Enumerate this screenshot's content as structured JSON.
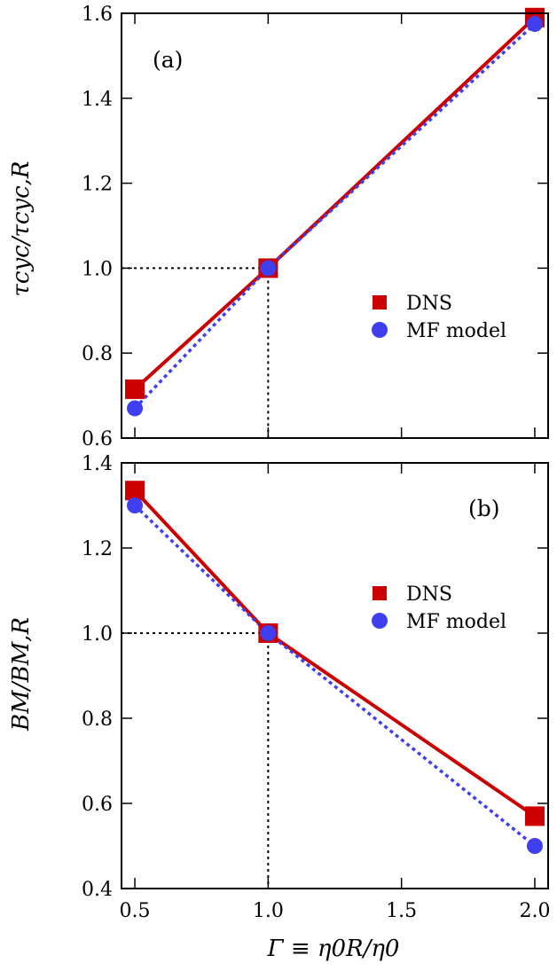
{
  "chart_data": [
    {
      "type": "line",
      "panel_label": "(a)",
      "ylabel": "τcyc/τcyc,R",
      "xlabel": "Γ ≡ η0R/η0",
      "x": [
        0.5,
        1.0,
        2.0
      ],
      "xlim": [
        0.45,
        2.05
      ],
      "ylim": [
        0.6,
        1.6
      ],
      "xticks": [
        0.5,
        1.0,
        1.5,
        2.0
      ],
      "yticks": [
        0.6,
        0.8,
        1.0,
        1.2,
        1.4,
        1.6
      ],
      "ytick_labels": [
        "0.6",
        "0.8",
        "1.0",
        "1.2",
        "1.4",
        "1.6"
      ],
      "reference_point": {
        "x": 1.0,
        "y": 1.0
      },
      "legend_placement": "right-middle",
      "series": [
        {
          "name": "DNS",
          "values": [
            0.715,
            1.0,
            1.59
          ],
          "marker": "square",
          "line": "solid",
          "color": "#cc0000"
        },
        {
          "name": "MF model",
          "values": [
            0.67,
            1.0,
            1.575
          ],
          "marker": "circle",
          "line": "dotted",
          "color": "#3f3ff0"
        }
      ]
    },
    {
      "type": "line",
      "panel_label": "(b)",
      "ylabel": "BM/BM,R",
      "xlabel": "Γ ≡ η0R/η0",
      "x": [
        0.5,
        1.0,
        2.0
      ],
      "xlim": [
        0.45,
        2.05
      ],
      "ylim": [
        0.4,
        1.4
      ],
      "xticks": [
        0.5,
        1.0,
        1.5,
        2.0
      ],
      "xtick_labels": [
        "0.5",
        "1.0",
        "1.5",
        "2.0"
      ],
      "yticks": [
        0.4,
        0.6,
        0.8,
        1.0,
        1.2,
        1.4
      ],
      "ytick_labels": [
        "0.4",
        "0.6",
        "0.8",
        "1.0",
        "1.2",
        "1.4"
      ],
      "reference_point": {
        "x": 1.0,
        "y": 1.0
      },
      "legend_placement": "right-middle",
      "series": [
        {
          "name": "DNS",
          "values": [
            1.335,
            1.0,
            0.57
          ],
          "marker": "square",
          "line": "solid",
          "color": "#cc0000"
        },
        {
          "name": "MF model",
          "values": [
            1.3,
            1.0,
            0.5
          ],
          "marker": "circle",
          "line": "dotted",
          "color": "#3f3ff0"
        }
      ]
    }
  ]
}
